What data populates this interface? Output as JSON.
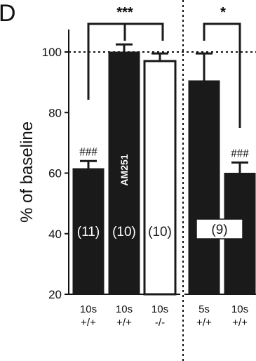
{
  "panel_label": "D",
  "chart_data": {
    "type": "bar",
    "title": "",
    "ylabel": "% of baseline",
    "xlabel": "",
    "ylim": [
      20,
      100
    ],
    "y_ticks": [
      20,
      40,
      60,
      80,
      100
    ],
    "reference_line": 100,
    "grid": false,
    "colors": {
      "dark": "#1a1a1a",
      "open": "#ffffff",
      "axis": "#111111"
    },
    "bars": [
      {
        "category": "10s",
        "genotype": "+/+",
        "value": 61.5,
        "error": 2.5,
        "fill": "dark",
        "n_label": "(11)",
        "above_label": "###",
        "inner_label": ""
      },
      {
        "category": "10s",
        "genotype": "+/+",
        "value": 100,
        "error": 2.5,
        "fill": "dark",
        "n_label": "(10)",
        "above_label": "",
        "inner_label": "AM251"
      },
      {
        "category": "10s",
        "genotype": "-/-",
        "value": 97,
        "error": 2.5,
        "fill": "open",
        "n_label": "(10)",
        "above_label": "",
        "inner_label": ""
      },
      {
        "category": "5s",
        "genotype": "+/+",
        "value": 90.5,
        "error": 9,
        "fill": "dark",
        "n_label": "",
        "above_label": "",
        "inner_label": ""
      },
      {
        "category": "10s",
        "genotype": "+/+",
        "value": 60,
        "error": 3.5,
        "fill": "dark",
        "n_label": "",
        "above_label": "###",
        "inner_label": ""
      }
    ],
    "group_n_label": "(9)",
    "significance": [
      {
        "label": "***"
      },
      {
        "label": "*"
      }
    ]
  }
}
